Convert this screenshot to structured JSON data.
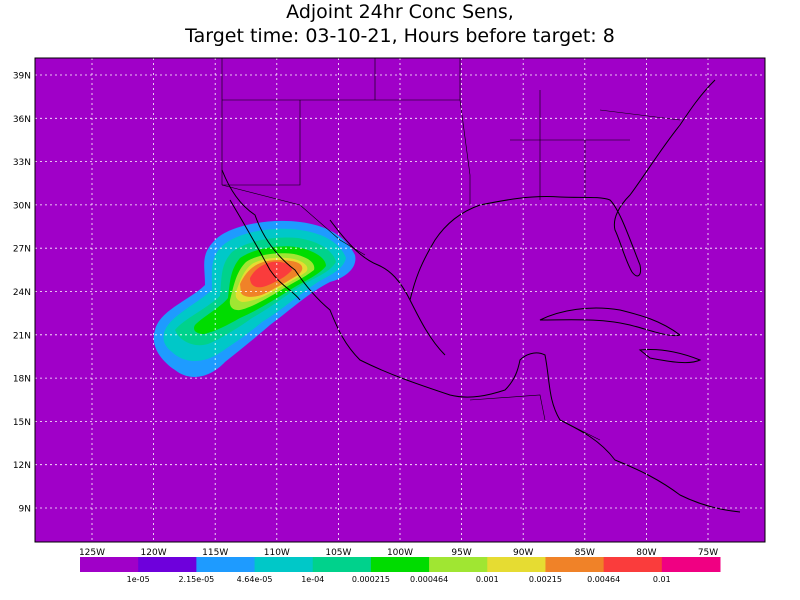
{
  "header": {
    "title_line1": "Adjoint 24hr Conc Sens,",
    "title_line2": "Target time: 03-10-21, Hours before target: 8"
  },
  "map": {
    "lat_labels": [
      "39N",
      "36N",
      "33N",
      "30N",
      "27N",
      "24N",
      "21N",
      "18N",
      "15N",
      "12N",
      "9N"
    ],
    "lon_labels": [
      "125W",
      "120W",
      "115W",
      "110W",
      "105W",
      "100W",
      "95W",
      "90W",
      "85W",
      "80W",
      "75W"
    ]
  },
  "colorbar": {
    "colors": [
      "#a000c8",
      "#6e00dc",
      "#1e9bff",
      "#00c8c8",
      "#00d28c",
      "#00dc00",
      "#a0e632",
      "#e6dc32",
      "#f08228",
      "#fa3c3c",
      "#f00082"
    ],
    "labels": [
      "1e-05",
      "2.15e-05",
      "4.64e-05",
      "1e-04",
      "0.000215",
      "0.000464",
      "0.001",
      "0.00215",
      "0.00464",
      "0.01"
    ]
  }
}
